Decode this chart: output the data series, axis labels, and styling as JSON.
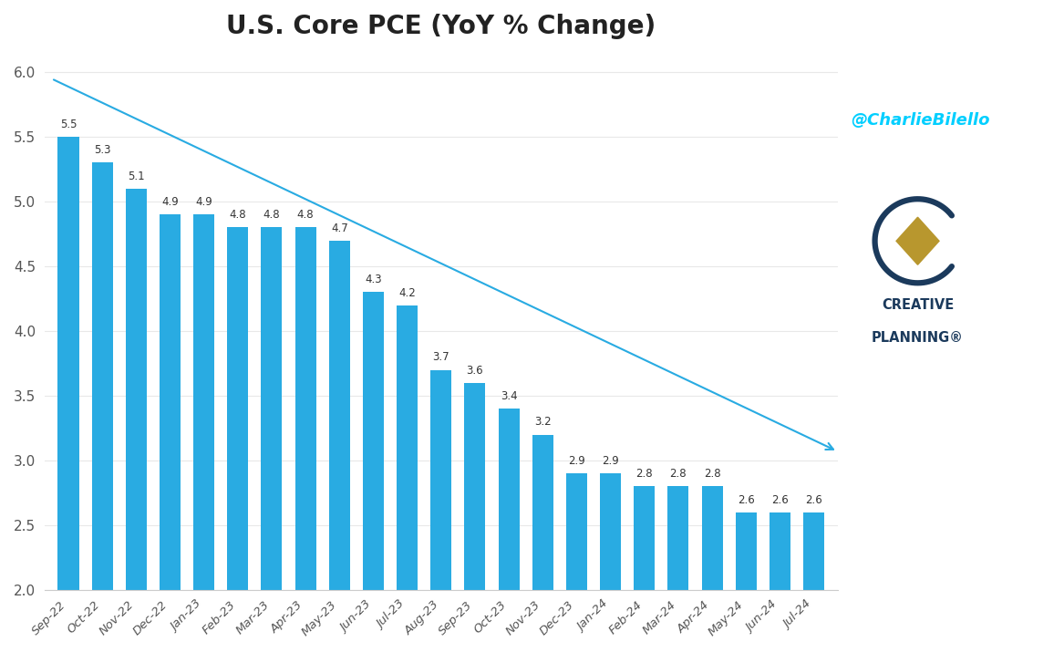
{
  "title": "U.S. Core PCE (YoY % Change)",
  "categories": [
    "Sep-22",
    "Oct-22",
    "Nov-22",
    "Dec-22",
    "Jan-23",
    "Feb-23",
    "Mar-23",
    "Apr-23",
    "May-23",
    "Jun-23",
    "Jul-23",
    "Aug-23",
    "Sep-23",
    "Oct-23",
    "Nov-23",
    "Dec-23",
    "Jan-24",
    "Feb-24",
    "Mar-24",
    "Apr-24",
    "May-24",
    "Jun-24",
    "Jul-24"
  ],
  "values": [
    5.5,
    5.3,
    5.1,
    4.9,
    4.9,
    4.8,
    4.8,
    4.8,
    4.7,
    4.3,
    4.2,
    3.7,
    3.6,
    3.4,
    3.2,
    2.9,
    2.9,
    2.8,
    2.8,
    2.8,
    2.6,
    2.6,
    2.6
  ],
  "bar_color": "#29ABE2",
  "trend_line_color": "#29ABE2",
  "arrow_color": "#29ABE2",
  "ylabel_values": [
    2.0,
    2.5,
    3.0,
    3.5,
    4.0,
    4.5,
    5.0,
    5.5,
    6.0
  ],
  "ylim": [
    2.0,
    6.15
  ],
  "background_color": "#ffffff",
  "title_fontsize": 20,
  "twitter_handle": "@CharlieBilello",
  "twitter_color": "#00CFFF",
  "logo_text_line1": "CREATIVE",
  "logo_text_line2": "PLANNING®",
  "logo_color": "#1B3A5C",
  "logo_diamond_color": "#B8972E",
  "grid_color": "#e8e8e8",
  "tick_color": "#555555",
  "value_label_color": "#333333"
}
